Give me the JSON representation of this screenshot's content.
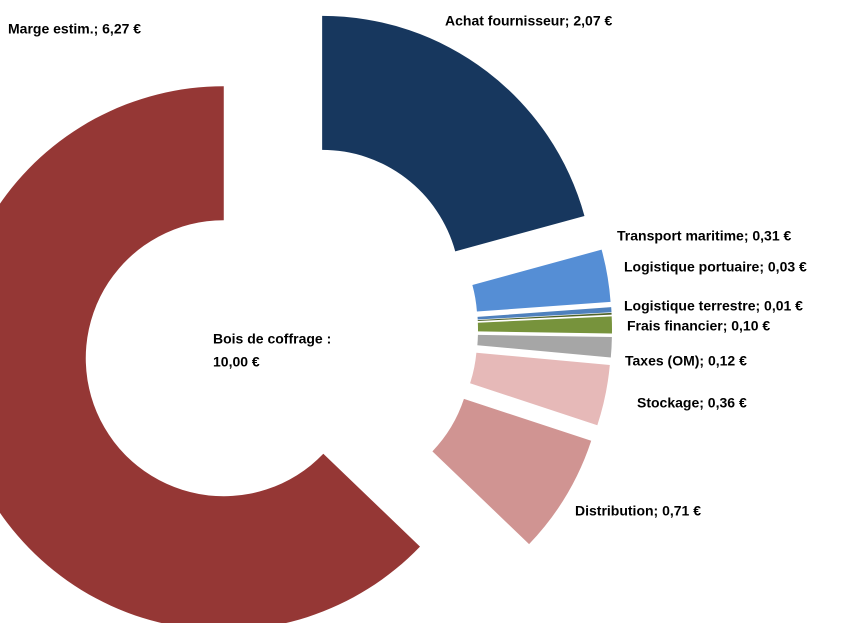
{
  "chart_data": {
    "type": "donut",
    "center_label": [
      "Bois de coffrage :",
      "10,00 €"
    ],
    "values": [
      2.07,
      0.31,
      0.03,
      0.01,
      0.1,
      0.12,
      0.36,
      0.71,
      6.27
    ],
    "value_labels": [
      "Achat fournisseur; 2,07 €",
      "Transport maritime; 0,31 €",
      "Logistique portuaire; 0,03 €",
      "Logistique terrestre; 0,01 €",
      "Frais financier; 0,10 €",
      "Taxes (OM); 0,12 €",
      "Stockage; 0,36 €",
      "Distribution; 0,71 €",
      "Marge estim.; 6,27 €"
    ],
    "colors": [
      "#17375e",
      "#558ed5",
      "#4f81bd",
      "#4f6228",
      "#77933c",
      "#a6a6a6",
      "#e6b9b8",
      "#d09492",
      "#953735"
    ]
  }
}
